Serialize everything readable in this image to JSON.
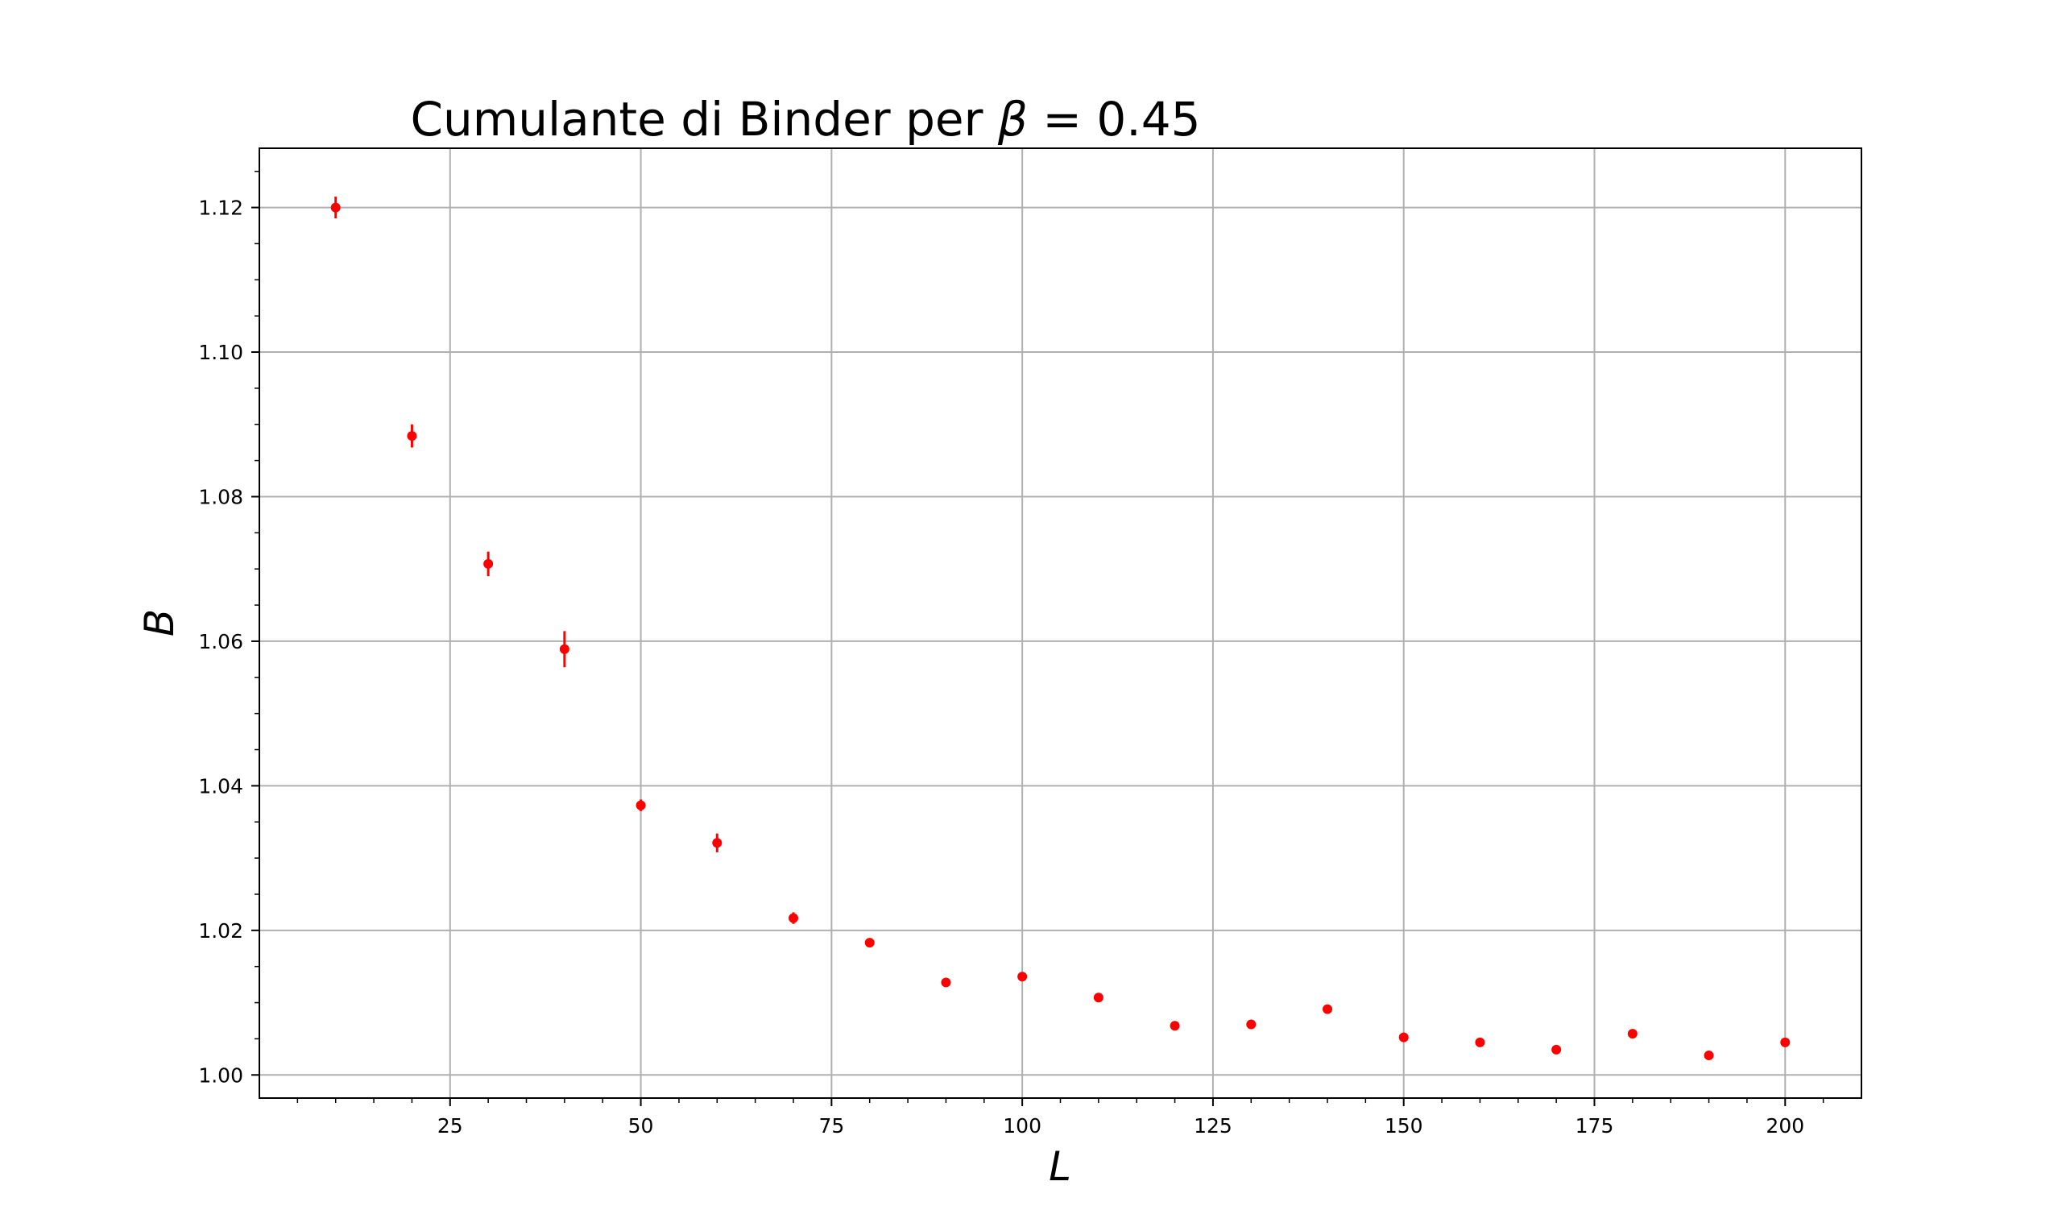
{
  "chart_data": {
    "type": "scatter",
    "title": "Cumulante di Binder per ",
    "title_symbol": "β",
    "title_suffix": " = 0.45",
    "xlabel": "L",
    "ylabel": "B",
    "xlim": [
      0,
      210
    ],
    "ylim": [
      0.9968,
      1.1282
    ],
    "xticks": [
      25,
      50,
      75,
      100,
      125,
      150,
      175,
      200
    ],
    "yticks": [
      1.0,
      1.02,
      1.04,
      1.06,
      1.08,
      1.1,
      1.12
    ],
    "ytick_labels": [
      "1.00",
      "1.02",
      "1.04",
      "1.06",
      "1.08",
      "1.10",
      "1.12"
    ],
    "grid": true,
    "marker_color": "#ff0000",
    "points": [
      {
        "x": 10,
        "y": 1.12,
        "err": 0.0015
      },
      {
        "x": 20,
        "y": 1.0884,
        "err": 0.0016
      },
      {
        "x": 30,
        "y": 1.0707,
        "err": 0.0017
      },
      {
        "x": 40,
        "y": 1.0589,
        "err": 0.0025
      },
      {
        "x": 50,
        "y": 1.0373,
        "err": 0.0008
      },
      {
        "x": 60,
        "y": 1.0321,
        "err": 0.0013
      },
      {
        "x": 70,
        "y": 1.0217,
        "err": 0.0008
      },
      {
        "x": 80,
        "y": 1.0183,
        "err": 0.0004
      },
      {
        "x": 90,
        "y": 1.0128,
        "err": 0.0003
      },
      {
        "x": 100,
        "y": 1.0136,
        "err": 0.0003
      },
      {
        "x": 110,
        "y": 1.0107,
        "err": 0.0003
      },
      {
        "x": 120,
        "y": 1.0068,
        "err": 0.0003
      },
      {
        "x": 130,
        "y": 1.007,
        "err": 0.0003
      },
      {
        "x": 140,
        "y": 1.0091,
        "err": 0.0003
      },
      {
        "x": 150,
        "y": 1.0052,
        "err": 0.0003
      },
      {
        "x": 160,
        "y": 1.0045,
        "err": 0.0003
      },
      {
        "x": 170,
        "y": 1.0035,
        "err": 0.0003
      },
      {
        "x": 180,
        "y": 1.0057,
        "err": 0.0003
      },
      {
        "x": 190,
        "y": 1.0027,
        "err": 0.0003
      },
      {
        "x": 200,
        "y": 1.0045,
        "err": 0.0003
      }
    ]
  }
}
